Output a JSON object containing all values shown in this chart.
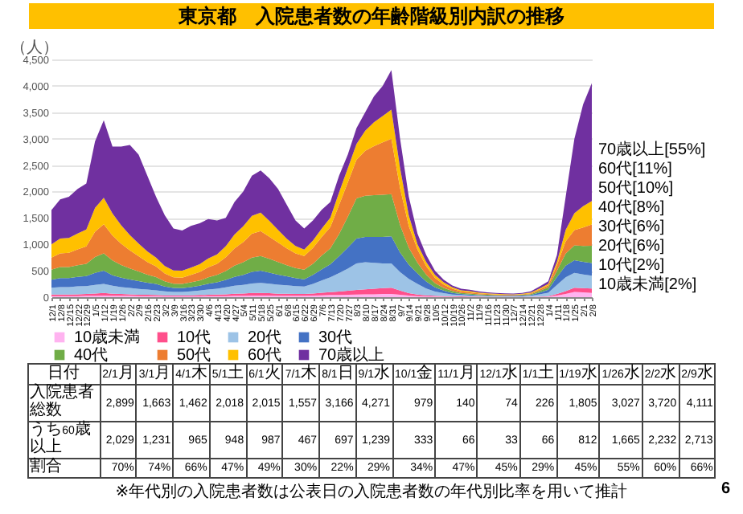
{
  "chart_data": [
    {
      "type": "area",
      "title": "東京都　入院患者数の年齢階級別内訳の推移",
      "ylabel": "（人）",
      "stacked": true,
      "grid": "y",
      "legend": "bottom",
      "ylim": [
        0,
        4500
      ],
      "yticks": [
        0,
        500,
        {
          "value": 1000,
          "label": "1,000"
        },
        {
          "value": 1500,
          "label": "1,500"
        },
        {
          "value": 2000,
          "label": "2,000"
        },
        {
          "value": 2500,
          "label": "2,500"
        },
        {
          "value": 3000,
          "label": "3,000"
        },
        {
          "value": 3500,
          "label": "3,500"
        },
        {
          "value": 4000,
          "label": "4,000"
        },
        {
          "value": 4500,
          "label": "4,500"
        }
      ],
      "categories": [
        "12/1",
        "12/8",
        "12/15",
        "12/22",
        "12/29",
        "1/5",
        "1/12",
        "1/19",
        "1/26",
        "2/2",
        "2/9",
        "2/16",
        "2/23",
        "3/2",
        "3/9",
        "3/16",
        "3/23",
        "3/30",
        "4/6",
        "4/13",
        "4/20",
        "4/27",
        "5/4",
        "5/11",
        "5/18",
        "5/25",
        "6/1",
        "6/8",
        "6/15",
        "6/22",
        "6/29",
        "7/6",
        "7/13",
        "7/20",
        "7/27",
        "8/3",
        "8/10",
        "8/17",
        "8/24",
        "8/31",
        "9/7",
        "9/14",
        "9/21",
        "9/28",
        "10/5",
        "10/12",
        "10/19",
        "10/26",
        "11/2",
        "11/9",
        "11/16",
        "11/23",
        "11/30",
        "12/7",
        "12/14",
        "12/21",
        "12/28",
        "1/4",
        "1/11",
        "1/18",
        "1/25",
        "2/1",
        "2/8"
      ],
      "series": [
        {
          "name": "10歳未満",
          "color": "#ffb3f0",
          "values": [
            20,
            20,
            20,
            20,
            25,
            25,
            30,
            25,
            25,
            25,
            20,
            20,
            20,
            15,
            15,
            15,
            15,
            15,
            20,
            20,
            20,
            25,
            25,
            30,
            30,
            30,
            25,
            25,
            25,
            25,
            30,
            35,
            40,
            40,
            45,
            50,
            55,
            55,
            60,
            60,
            45,
            30,
            20,
            15,
            10,
            8,
            6,
            5,
            4,
            4,
            3,
            3,
            3,
            3,
            3,
            4,
            6,
            10,
            30,
            60,
            100,
            90,
            81
          ]
        },
        {
          "name": "10代",
          "color": "#ff4f8b",
          "values": [
            30,
            30,
            30,
            35,
            35,
            45,
            50,
            40,
            35,
            30,
            25,
            25,
            20,
            20,
            20,
            20,
            20,
            25,
            25,
            30,
            35,
            40,
            45,
            50,
            50,
            45,
            40,
            40,
            35,
            35,
            40,
            50,
            55,
            65,
            75,
            85,
            95,
            105,
            110,
            120,
            80,
            45,
            30,
            20,
            15,
            12,
            10,
            10,
            8,
            6,
            5,
            4,
            3,
            3,
            3,
            4,
            6,
            10,
            30,
            55,
            80,
            80,
            81
          ]
        },
        {
          "name": "20代",
          "color": "#9dc3e6",
          "values": [
            130,
            140,
            140,
            150,
            150,
            160,
            170,
            150,
            130,
            120,
            110,
            100,
            90,
            75,
            65,
            65,
            75,
            85,
            100,
            110,
            130,
            150,
            160,
            180,
            190,
            180,
            170,
            160,
            150,
            140,
            180,
            230,
            280,
            350,
            420,
            505,
            510,
            490,
            470,
            460,
            350,
            270,
            200,
            130,
            80,
            55,
            35,
            25,
            20,
            15,
            12,
            10,
            10,
            9,
            11,
            17,
            40,
            65,
            170,
            260,
            280,
            260,
            243
          ]
        },
        {
          "name": "30代",
          "color": "#4472c4",
          "values": [
            150,
            170,
            170,
            180,
            190,
            230,
            250,
            200,
            180,
            160,
            150,
            130,
            120,
            90,
            75,
            70,
            80,
            90,
            110,
            120,
            140,
            170,
            190,
            220,
            230,
            210,
            190,
            170,
            150,
            140,
            170,
            210,
            250,
            320,
            400,
            470,
            480,
            490,
            500,
            510,
            370,
            270,
            200,
            130,
            80,
            50,
            30,
            20,
            18,
            14,
            12,
            11,
            10,
            10,
            12,
            17,
            35,
            55,
            150,
            220,
            240,
            240,
            243
          ]
        },
        {
          "name": "40代",
          "color": "#70ad47",
          "values": [
            190,
            210,
            210,
            220,
            230,
            300,
            330,
            280,
            240,
            210,
            180,
            150,
            130,
            100,
            80,
            80,
            90,
            100,
            120,
            140,
            170,
            210,
            240,
            270,
            280,
            260,
            240,
            210,
            190,
            180,
            210,
            260,
            300,
            420,
            580,
            760,
            780,
            790,
            800,
            800,
            520,
            320,
            200,
            130,
            80,
            50,
            35,
            20,
            18,
            14,
            12,
            11,
            10,
            10,
            12,
            16,
            30,
            45,
            120,
            230,
            280,
            300,
            324
          ]
        },
        {
          "name": "50代",
          "color": "#ed7d31",
          "values": [
            230,
            260,
            270,
            300,
            330,
            480,
            550,
            470,
            400,
            340,
            290,
            240,
            200,
            150,
            120,
            120,
            140,
            160,
            190,
            210,
            260,
            330,
            380,
            450,
            470,
            420,
            370,
            320,
            280,
            260,
            300,
            350,
            400,
            550,
            650,
            730,
            850,
            930,
            990,
            1050,
            700,
            410,
            250,
            160,
            100,
            65,
            45,
            30,
            25,
            20,
            15,
            12,
            11,
            10,
            12,
            16,
            28,
            40,
            110,
            230,
            290,
            350,
            405
          ]
        },
        {
          "name": "60代",
          "color": "#ffc000",
          "values": [
            250,
            280,
            280,
            300,
            320,
            450,
            500,
            420,
            350,
            290,
            240,
            200,
            170,
            140,
            130,
            130,
            140,
            150,
            170,
            180,
            210,
            260,
            300,
            340,
            350,
            300,
            240,
            180,
            140,
            120,
            140,
            160,
            180,
            240,
            270,
            300,
            380,
            450,
            500,
            550,
            380,
            200,
            100,
            80,
            55,
            40,
            25,
            20,
            20,
            15,
            13,
            12,
            11,
            10,
            11,
            14,
            20,
            25,
            60,
            220,
            320,
            400,
            445
          ]
        },
        {
          "name": "70歳以上",
          "color": "#7030a0",
          "values": [
            650,
            740,
            780,
            845,
            870,
            1260,
            1470,
            1265,
            1490,
            1705,
            1685,
            1435,
            1150,
            960,
            795,
            760,
            790,
            775,
            745,
            640,
            535,
            615,
            660,
            760,
            800,
            805,
            775,
            645,
            480,
            400,
            380,
            360,
            295,
            315,
            260,
            300,
            350,
            490,
            570,
            750,
            555,
            355,
            200,
            135,
            80,
            50,
            34,
            30,
            27,
            22,
            18,
            17,
            16,
            15,
            16,
            22,
            35,
            50,
            130,
            625,
            1410,
            1930,
            2228
          ]
        }
      ],
      "annotations": [
        "70歳以上[55%]",
        "60代[11%]",
        "50代[10%]",
        "40代[8%]",
        "30代[6%]",
        "20代[6%]",
        "10代[2%]",
        "10歳未満[2%]"
      ]
    },
    {
      "type": "other",
      "xlabel": "日付",
      "categories": [
        "2/1月",
        "3/1月",
        "4/1木",
        "5/1土",
        "6/1火",
        "7/1木",
        "8/1日",
        "9/1水",
        "10/1金",
        "11/1月",
        "12/1水",
        "1/1土",
        "1/19水",
        "1/26水",
        "2/2水",
        "2/9水"
      ],
      "series": [
        {
          "name": "入院患者総数",
          "values": [
            2899,
            1663,
            1462,
            2018,
            2015,
            1557,
            3166,
            4271,
            979,
            140,
            74,
            226,
            1805,
            3027,
            3720,
            4111
          ],
          "value_labels": [
            "2,899",
            "1,663",
            "1,462",
            "2,018",
            "2,015",
            "1,557",
            "3,166",
            "4,271",
            "979",
            "140",
            "74",
            "226",
            "1,805",
            "3,027",
            "3,720",
            "4,111"
          ]
        },
        {
          "name": "うち60歳以上",
          "values": [
            2029,
            1231,
            965,
            948,
            987,
            467,
            697,
            1239,
            333,
            66,
            33,
            66,
            812,
            1665,
            2232,
            2713
          ],
          "value_labels": [
            "2,029",
            "1,231",
            "965",
            "948",
            "987",
            "467",
            "697",
            "1,239",
            "333",
            "66",
            "33",
            "66",
            "812",
            "1,665",
            "2,232",
            "2,713"
          ]
        },
        {
          "name": "割合",
          "values": [
            70,
            74,
            66,
            47,
            49,
            30,
            22,
            29,
            34,
            47,
            45,
            29,
            45,
            55,
            60,
            66
          ],
          "value_labels": [
            "70%",
            "74%",
            "66%",
            "47%",
            "49%",
            "30%",
            "22%",
            "29%",
            "34%",
            "47%",
            "45%",
            "29%",
            "45%",
            "55%",
            "60%",
            "66%"
          ]
        }
      ],
      "annotations": [
        "※年代別の入院患者数は公表日の入院患者数の年代別比率を用いて推計",
        "6"
      ]
    }
  ]
}
